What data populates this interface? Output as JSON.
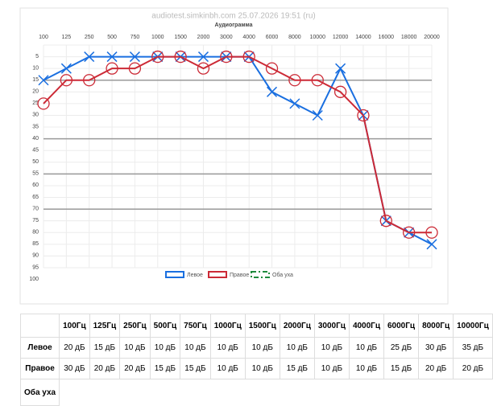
{
  "chart_data": {
    "type": "line",
    "title": "audiotest.simkinbh.com    25.07.2026    19:51 (ru)",
    "subtitle": "Аудиограмма",
    "categories": [
      "100",
      "125",
      "250",
      "500",
      "750",
      "1000",
      "1500",
      "2000",
      "3000",
      "4000",
      "6000",
      "8000",
      "10000",
      "12000",
      "14000",
      "16000",
      "18000",
      "20000"
    ],
    "series": [
      {
        "name": "Левое",
        "color": "#1a6fe0",
        "marker": "x",
        "values": [
          20,
          15,
          10,
          10,
          10,
          10,
          10,
          10,
          10,
          10,
          25,
          30,
          35,
          15,
          35,
          80,
          85,
          90
        ]
      },
      {
        "name": "Правое",
        "color": "#cc2a36",
        "marker": "circle",
        "values": [
          30,
          20,
          20,
          15,
          15,
          10,
          10,
          15,
          10,
          10,
          15,
          20,
          20,
          25,
          35,
          80,
          85,
          85
        ]
      },
      {
        "name": "Оба уха",
        "color": "#1e8a3c",
        "dashed": true,
        "values": [
          null,
          null,
          null,
          null,
          null,
          null,
          null,
          null,
          null,
          null,
          null,
          null,
          null,
          null,
          null,
          null,
          null,
          null
        ]
      }
    ],
    "ylim": [
      5,
      100
    ],
    "y_reversed": true,
    "yticks": [
      5,
      10,
      15,
      20,
      25,
      30,
      35,
      40,
      45,
      50,
      55,
      60,
      65,
      70,
      75,
      80,
      85,
      90,
      95,
      100
    ],
    "highlight_lines": [
      20,
      45,
      60,
      75
    ],
    "grid": true,
    "legend": "bottom"
  },
  "table": {
    "header": [
      "100Гц",
      "125Гц",
      "250Гц",
      "500Гц",
      "750Гц",
      "1000Гц",
      "1500Гц",
      "2000Гц",
      "3000Гц",
      "4000Гц",
      "6000Гц",
      "8000Гц",
      "10000Гц"
    ],
    "rows": [
      {
        "label": "Левое",
        "cells": [
          "20 дБ",
          "15 дБ",
          "10 дБ",
          "10 дБ",
          "10 дБ",
          "10 дБ",
          "10 дБ",
          "10 дБ",
          "10 дБ",
          "10 дБ",
          "25 дБ",
          "30 дБ",
          "35 дБ"
        ]
      },
      {
        "label": "Правое",
        "cells": [
          "30 дБ",
          "20 дБ",
          "20 дБ",
          "15 дБ",
          "15 дБ",
          "10 дБ",
          "10 дБ",
          "15 дБ",
          "10 дБ",
          "10 дБ",
          "15 дБ",
          "20 дБ",
          "20 дБ"
        ]
      },
      {
        "label": "Оба уха",
        "cells": []
      }
    ]
  }
}
